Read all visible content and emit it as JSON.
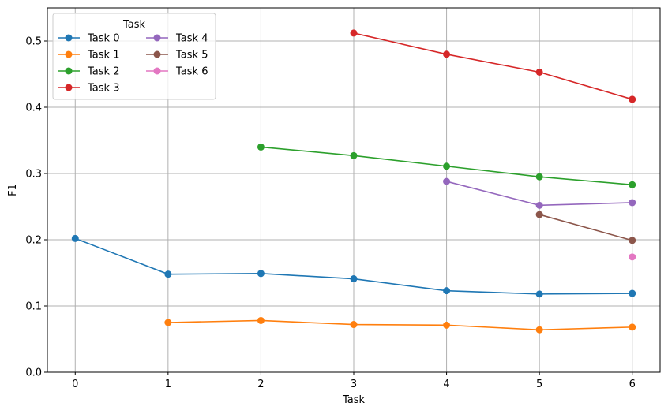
{
  "chart_data": {
    "type": "line",
    "xlabel": "Task",
    "ylabel": "F1",
    "xlim": [
      -0.3,
      6.3
    ],
    "ylim": [
      0,
      0.55
    ],
    "xticks": [
      "0",
      "1",
      "2",
      "3",
      "4",
      "5",
      "6"
    ],
    "yticks": [
      "0.0",
      "0.1",
      "0.2",
      "0.3",
      "0.4",
      "0.5"
    ],
    "grid": true,
    "legend": {
      "title": "Task",
      "placement": "top-left",
      "columns": 2
    },
    "series": [
      {
        "name": "Task 0",
        "color": "#1f77b4",
        "x": [
          0,
          1,
          2,
          3,
          4,
          5,
          6
        ],
        "y": [
          0.202,
          0.148,
          0.149,
          0.141,
          0.123,
          0.118,
          0.119
        ]
      },
      {
        "name": "Task 1",
        "color": "#ff7f0e",
        "x": [
          1,
          2,
          3,
          4,
          5,
          6
        ],
        "y": [
          0.075,
          0.078,
          0.072,
          0.071,
          0.064,
          0.068
        ]
      },
      {
        "name": "Task 2",
        "color": "#2ca02c",
        "x": [
          2,
          3,
          4,
          5,
          6
        ],
        "y": [
          0.34,
          0.327,
          0.311,
          0.295,
          0.283
        ]
      },
      {
        "name": "Task 3",
        "color": "#d62728",
        "x": [
          3,
          4,
          5,
          6
        ],
        "y": [
          0.512,
          0.48,
          0.453,
          0.412
        ]
      },
      {
        "name": "Task 4",
        "color": "#9467bd",
        "x": [
          4,
          5,
          6
        ],
        "y": [
          0.288,
          0.252,
          0.256
        ]
      },
      {
        "name": "Task 5",
        "color": "#8c564b",
        "x": [
          5,
          6
        ],
        "y": [
          0.238,
          0.199
        ]
      },
      {
        "name": "Task 6",
        "color": "#e377c2",
        "x": [
          6
        ],
        "y": [
          0.174
        ]
      }
    ]
  }
}
